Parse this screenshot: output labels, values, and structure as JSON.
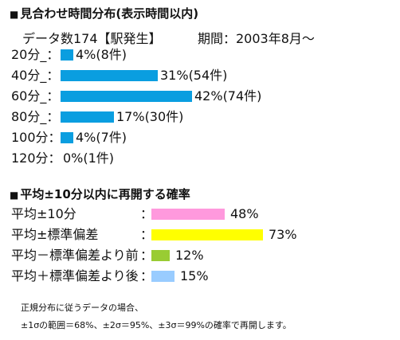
{
  "section1": {
    "title": "見合わせ時間分布(表示時間以内)",
    "subtitle_count": "データ数174【駅発生】",
    "subtitle_period": "期間：2003年8月～"
  },
  "section2": {
    "title": "平均±10分以内に再開する確率"
  },
  "colors": {
    "chart1_bar": "#0a9ee0",
    "chart2_bars": [
      "#ff99dd",
      "#ffff00",
      "#99cc33",
      "#99ccff"
    ]
  },
  "chart_data": [
    {
      "type": "bar",
      "orientation": "horizontal",
      "categories": [
        "20分_：",
        "40分_：",
        "60分_：",
        "80分_：",
        "100分：",
        "120分："
      ],
      "values": [
        4,
        31,
        42,
        17,
        4,
        0
      ],
      "counts": [
        8,
        54,
        74,
        30,
        7,
        1
      ],
      "labels": [
        "4%(8件)",
        "31%(54件)",
        "42%(74件)",
        "17%(30件)",
        "4%(7件)",
        "0%(1件)"
      ],
      "unit": "%"
    },
    {
      "type": "bar",
      "orientation": "horizontal",
      "categories": [
        "平均±10分",
        "平均±標準偏差",
        "平均－標準偏差より前",
        "平均＋標準偏差より後"
      ],
      "values": [
        48,
        73,
        12,
        15
      ],
      "labels": [
        "48%",
        "73%",
        "12%",
        "15%"
      ],
      "unit": "%"
    }
  ],
  "note": {
    "line1": "正規分布に従うデータの場合、",
    "line2": "±1σの範囲＝68%、±2σ＝95%、±3σ＝99%の確率で再開します。"
  }
}
